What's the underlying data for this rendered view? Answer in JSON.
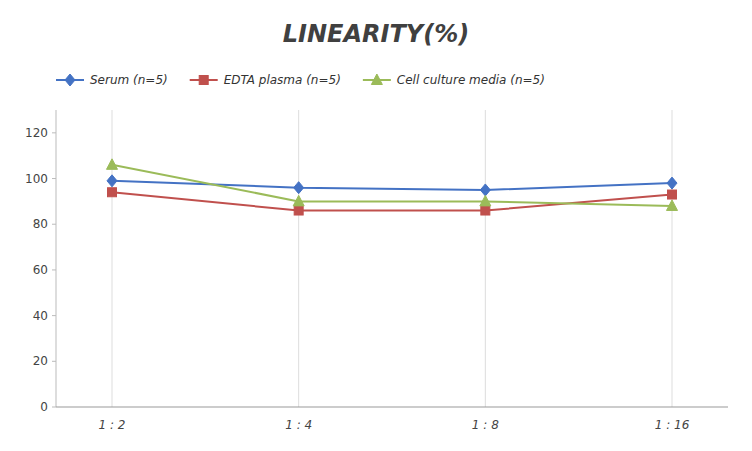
{
  "chart_data": {
    "type": "line",
    "title": "LINEARITY(%)",
    "categories": [
      "1 : 2",
      "1 : 4",
      "1 : 8",
      "1 : 16"
    ],
    "series": [
      {
        "name": "Serum (n=5)",
        "color": "#4472C4",
        "marker": "diamond",
        "line_style": "solid",
        "values": [
          99,
          96,
          95,
          98
        ]
      },
      {
        "name": "EDTA plasma (n=5)",
        "color": "#C0504D",
        "marker": "square",
        "line_style": "solid",
        "values": [
          94,
          86,
          86,
          93
        ]
      },
      {
        "name": "Cell culture media (n=5)",
        "color": "#9BBB59",
        "marker": "triangle",
        "line_style": "solid",
        "values": [
          106,
          90,
          90,
          88
        ]
      }
    ],
    "ylim": [
      0,
      130
    ],
    "yticks": [
      0,
      20,
      40,
      60,
      80,
      100,
      120
    ],
    "grid": true,
    "legend": "top"
  }
}
